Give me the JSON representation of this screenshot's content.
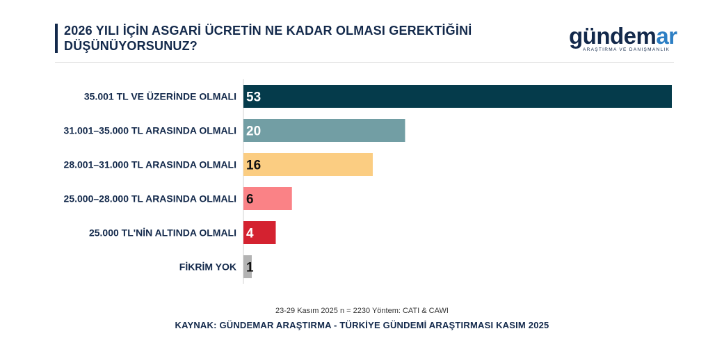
{
  "header": {
    "title": "2026 YILI İÇİN ASGARİ ÜCRETİN NE KADAR OLMASI GEREKTİĞİNİ DÜŞÜNÜYORSUNUZ?"
  },
  "logo": {
    "main_prefix": "gündem",
    "main_accent": "ar",
    "subtitle": "ARAŞTIRMA VE DANIŞMANLIK"
  },
  "footer": {
    "note": "23-29 Kasım 2025 n = 2230 Yöntem: CATI & CAWI",
    "source": "KAYNAK: GÜNDEMAR ARAŞTIRMA - TÜRKİYE GÜNDEMİ ARAŞTIRMASI KASIM 2025"
  },
  "chart_data": {
    "type": "bar",
    "orientation": "horizontal",
    "title": "2026 YILI İÇİN ASGARİ ÜCRETİN NE KADAR OLMASI GEREKTİĞİNİ DÜŞÜNÜYORSUNUZ?",
    "categories": [
      "35.001 TL VE ÜZERİNDE OLMALI",
      "31.001–35.000 TL ARASINDA OLMALI",
      "28.001–31.000 TL ARASINDA OLMALI",
      "25.000–28.000 TL ARASINDA OLMALI",
      "25.000 TL'NİN ALTINDA OLMALI",
      "FİKRİM YOK"
    ],
    "values": [
      53,
      20,
      16,
      6,
      4,
      1
    ],
    "colors": [
      "#053b4b",
      "#729ea4",
      "#fbcd82",
      "#fa8286",
      "#d42230",
      "#b3b3b3"
    ],
    "label_colors": [
      "#ffffff",
      "#ffffff",
      "#111111",
      "#111111",
      "#ffffff",
      "#111111"
    ],
    "xlim": [
      0,
      53
    ],
    "grid": false,
    "legend": "none"
  }
}
